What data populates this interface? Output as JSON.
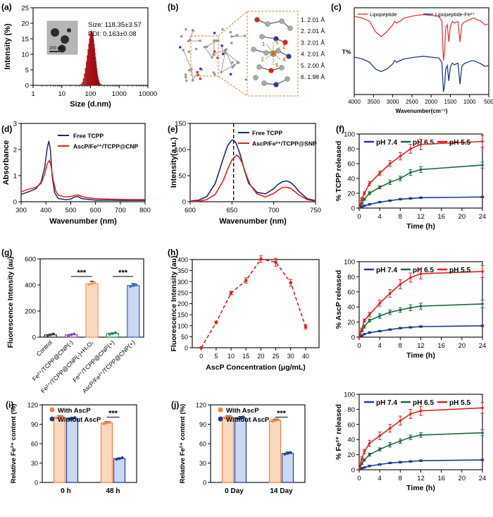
{
  "chart_data": [
    {
      "panel": "a",
      "type": "bar",
      "letter": "(a)",
      "xlabel": "Size (d.nm)",
      "ylabel": "Intensity (%)",
      "xscale": "log",
      "xlim": [
        1,
        10000
      ],
      "ylim": [
        0,
        25
      ],
      "xticks": [
        "1",
        "10",
        "100",
        "1000",
        "10000"
      ],
      "yticks": [
        "0",
        "5",
        "10",
        "15",
        "20",
        "25"
      ],
      "x": [
        45,
        50,
        55,
        60,
        65,
        70,
        75,
        80,
        85,
        90,
        95,
        100,
        105,
        110,
        115,
        120,
        125,
        130,
        135,
        140,
        145,
        150,
        155,
        160,
        165,
        170,
        175,
        180,
        185,
        190,
        195,
        200,
        210,
        220,
        230,
        240,
        250,
        260,
        270,
        280
      ],
      "values": [
        0.4,
        1.0,
        2.2,
        3.8,
        5.6,
        7.6,
        9.6,
        11.6,
        13.4,
        15.0,
        16.4,
        17.3,
        17.6,
        17.3,
        16.7,
        15.8,
        14.6,
        13.3,
        11.9,
        10.5,
        9.1,
        7.8,
        6.6,
        5.5,
        4.5,
        3.6,
        2.9,
        2.3,
        1.8,
        1.4,
        1.1,
        0.8,
        0.5,
        0.35,
        0.25,
        0.15,
        0.1,
        0.06,
        0.03,
        0.01
      ],
      "annotations": [
        "Size: 118.35±3.57",
        "PDI: 0.163±0.08"
      ],
      "inset_scale": "200 nm",
      "color": "#c0141c"
    },
    {
      "panel": "b",
      "type": "diagram",
      "letter": "(b)",
      "labels": [
        "1. 2.01 Å",
        "2. 2.01 Å",
        "3. 2.01 Å",
        "4. 2.01 Å",
        "5. 2.00 Å",
        "6. 1.98 Å"
      ],
      "markers": [
        "1",
        "2",
        "3",
        "4",
        "5",
        "6"
      ]
    },
    {
      "panel": "c",
      "type": "line",
      "letter": "(c)",
      "xlabel": "Wavenumber(cm⁻¹)",
      "ylabel": "T%",
      "xlim": [
        4000,
        500
      ],
      "xticks": [
        "4000",
        "3500",
        "3000",
        "2500",
        "2000",
        "1500",
        "1000",
        "500"
      ],
      "series": [
        {
          "name": "Lipopeptide",
          "color": "#e8383d",
          "x": [
            4000,
            3800,
            3600,
            3450,
            3300,
            3150,
            3000,
            2950,
            2900,
            2850,
            2700,
            2400,
            2200,
            2000,
            1800,
            1720,
            1680,
            1650,
            1620,
            1580,
            1540,
            1500,
            1450,
            1400,
            1300,
            1250,
            1200,
            1150,
            1100,
            1000,
            900,
            800,
            700,
            600,
            500
          ],
          "values": [
            0.92,
            0.9,
            0.86,
            0.74,
            0.68,
            0.74,
            0.82,
            0.86,
            0.84,
            0.85,
            0.9,
            0.93,
            0.94,
            0.93,
            0.92,
            0.86,
            0.4,
            0.5,
            0.78,
            0.82,
            0.62,
            0.8,
            0.86,
            0.84,
            0.86,
            0.62,
            0.82,
            0.85,
            0.86,
            0.88,
            0.9,
            0.88,
            0.86,
            0.82,
            0.83
          ]
        },
        {
          "name": "Lipopeptide-Fe³⁺",
          "color": "#1f3c88",
          "x": [
            4000,
            3800,
            3600,
            3450,
            3300,
            3150,
            3000,
            2950,
            2900,
            2850,
            2700,
            2400,
            2200,
            2000,
            1800,
            1720,
            1680,
            1650,
            1620,
            1580,
            1540,
            1500,
            1450,
            1400,
            1300,
            1250,
            1200,
            1150,
            1100,
            1000,
            900,
            800,
            700,
            600,
            500
          ],
          "values": [
            0.44,
            0.42,
            0.38,
            0.3,
            0.27,
            0.3,
            0.36,
            0.4,
            0.38,
            0.39,
            0.42,
            0.44,
            0.45,
            0.44,
            0.43,
            0.38,
            0.03,
            0.1,
            0.3,
            0.34,
            0.16,
            0.32,
            0.37,
            0.35,
            0.37,
            0.12,
            0.33,
            0.36,
            0.37,
            0.39,
            0.4,
            0.38,
            0.36,
            0.33,
            0.34
          ]
        }
      ]
    },
    {
      "panel": "d",
      "type": "line",
      "letter": "(d)",
      "xlabel": "Wavenumber (nm)",
      "ylabel": "Absorbance",
      "xlim": [
        300,
        800
      ],
      "ylim": [
        0,
        3
      ],
      "xticks": [
        "300",
        "400",
        "500",
        "600",
        "700",
        "800"
      ],
      "yticks": [
        "0",
        "1",
        "2",
        "3"
      ],
      "series": [
        {
          "name": "Free TCPP",
          "color": "#1a2a6c",
          "x": [
            300,
            330,
            360,
            380,
            395,
            405,
            412,
            418,
            425,
            435,
            450,
            480,
            500,
            515,
            530,
            545,
            560,
            580,
            600,
            650,
            700,
            750,
            800
          ],
          "values": [
            0.28,
            0.38,
            0.5,
            0.75,
            1.3,
            2.05,
            2.33,
            2.0,
            1.0,
            0.35,
            0.12,
            0.08,
            0.1,
            0.18,
            0.2,
            0.12,
            0.1,
            0.08,
            0.06,
            0.06,
            0.05,
            0.05,
            0.05
          ]
        },
        {
          "name": "AscP/Fe²⁺/TCPP@CNP",
          "color": "#e02020",
          "x": [
            300,
            330,
            360,
            380,
            395,
            405,
            414,
            420,
            430,
            440,
            450,
            480,
            500,
            515,
            530,
            545,
            560,
            580,
            600,
            650,
            700,
            750,
            800
          ],
          "values": [
            0.38,
            0.48,
            0.55,
            0.7,
            1.05,
            1.45,
            1.58,
            1.4,
            0.8,
            0.4,
            0.25,
            0.18,
            0.2,
            0.24,
            0.26,
            0.2,
            0.17,
            0.14,
            0.12,
            0.1,
            0.09,
            0.08,
            0.08
          ]
        }
      ]
    },
    {
      "panel": "e",
      "type": "line",
      "letter": "(e)",
      "xlabel": "Wavenumber (nm)",
      "ylabel": "Intensity(a.u.)",
      "xlim": [
        600,
        750
      ],
      "ylim": [
        0,
        150
      ],
      "xticks": [
        "600",
        "650",
        "700",
        "750"
      ],
      "yticks": [
        "0",
        "50",
        "100",
        "150"
      ],
      "vline": 652,
      "series": [
        {
          "name": "Free TCPP",
          "color": "#1a2a6c",
          "x": [
            600,
            610,
            620,
            630,
            640,
            645,
            650,
            652,
            655,
            660,
            665,
            670,
            680,
            690,
            700,
            705,
            710,
            715,
            720,
            725,
            730,
            740,
            750
          ],
          "values": [
            1,
            3,
            10,
            35,
            85,
            108,
            118,
            118,
            112,
            90,
            60,
            35,
            18,
            15,
            25,
            33,
            38,
            40,
            37,
            30,
            20,
            6,
            2
          ]
        },
        {
          "name": "AscP/Fe²⁺/TCPP@SNP",
          "color": "#e02020",
          "x": [
            600,
            610,
            620,
            630,
            640,
            645,
            650,
            655,
            658,
            662,
            667,
            672,
            680,
            690,
            700,
            705,
            710,
            715,
            720,
            725,
            730,
            740,
            750
          ],
          "values": [
            0,
            1,
            4,
            14,
            42,
            63,
            80,
            89,
            87,
            75,
            52,
            32,
            15,
            9,
            16,
            22,
            27,
            28,
            26,
            20,
            13,
            4,
            1
          ]
        }
      ]
    },
    {
      "panel": "f",
      "type": "line",
      "letter": "(f)",
      "xlabel": "Time (h)",
      "ylabel": "% TCPP released",
      "xlim": [
        0,
        24
      ],
      "ylim": [
        0,
        100
      ],
      "xticks": [
        "0",
        "4",
        "8",
        "12",
        "16",
        "20",
        "24"
      ],
      "yticks": [
        "0",
        "20",
        "40",
        "60",
        "80",
        "100"
      ],
      "x": [
        0,
        0.5,
        1,
        2,
        4,
        6,
        8,
        10,
        12,
        24
      ],
      "series": [
        {
          "name": "pH 7.4",
          "color": "#1f3c99",
          "values": [
            0,
            2,
            3,
            5,
            8,
            10,
            12,
            13,
            14,
            15
          ],
          "err": [
            0,
            0.5,
            0.5,
            1,
            1,
            1,
            1,
            1,
            1,
            1
          ]
        },
        {
          "name": "pH 6.5",
          "color": "#1e6b3a",
          "values": [
            0,
            6,
            12,
            20,
            28,
            35,
            40,
            48,
            52,
            58
          ],
          "err": [
            0,
            1,
            1.5,
            2,
            2,
            3,
            3,
            4,
            4,
            4
          ]
        },
        {
          "name": "pH 5.5",
          "color": "#e02020",
          "values": [
            0,
            12,
            20,
            33,
            47,
            60,
            70,
            80,
            86,
            90
          ],
          "err": [
            0,
            2,
            2,
            3,
            3,
            4,
            5,
            6,
            7,
            8
          ]
        }
      ]
    },
    {
      "panel": "g",
      "type": "bar",
      "letter": "(g)",
      "ylabel": "Fluorescence Intensity (au)",
      "ylim": [
        0,
        600
      ],
      "yticks": [
        "0",
        "200",
        "400",
        "600"
      ],
      "categories": [
        "Control",
        "Fe²⁺/TCPP@CNP(-)",
        "Fe²⁺/TCPP@CNP(-)+H₂O₂",
        "Fe²⁺/TCPP@CNP(+)",
        "AscP/Fe²⁺/TCPP@CNP(+)"
      ],
      "values": [
        18,
        18,
        410,
        28,
        395
      ],
      "err": [
        3,
        3,
        18,
        4,
        15
      ],
      "bar_colors": [
        "#3a3a3a",
        "#8e44ad",
        "#f5a060",
        "#2e8b57",
        "#3a6bc8"
      ],
      "bar_fills": [
        "none",
        "none",
        "#fbd9bf",
        "none",
        "#c9d9f2"
      ],
      "significance": [
        "***",
        "***"
      ]
    },
    {
      "panel": "h",
      "type": "line",
      "letter": "(h)",
      "xlabel": "AscP Concentration (μg/mL)",
      "ylabel": "Fluorescence Intensity (au)",
      "ylim": [
        0,
        400
      ],
      "yticks": [
        "0",
        "50",
        "100",
        "150",
        "200",
        "250",
        "300",
        "350",
        "400"
      ],
      "categories": [
        "0",
        "5",
        "10",
        "15",
        "20",
        "25",
        "30",
        "40"
      ],
      "values": [
        0,
        115,
        248,
        305,
        402,
        388,
        295,
        95
      ],
      "err": [
        0,
        6,
        8,
        12,
        15,
        18,
        15,
        10
      ],
      "color": "#e02020"
    },
    {
      "panel": "f2",
      "type": "line",
      "letter": "",
      "xlabel": "Time (h)",
      "ylabel": "% AscP released",
      "xlim": [
        0,
        24
      ],
      "ylim": [
        0,
        100
      ],
      "xticks": [
        "0",
        "4",
        "8",
        "12",
        "16",
        "20",
        "24"
      ],
      "yticks": [
        "0",
        "20",
        "40",
        "60",
        "80",
        "100"
      ],
      "x": [
        0,
        0.5,
        1,
        2,
        4,
        6,
        8,
        10,
        12,
        24
      ],
      "series": [
        {
          "name": "pH 7.4",
          "color": "#1f3c99",
          "values": [
            0,
            2,
            4,
            6,
            8,
            10,
            12,
            13,
            14,
            15
          ],
          "err": [
            0,
            0.5,
            0.5,
            1,
            1,
            1,
            1,
            1,
            1,
            1
          ]
        },
        {
          "name": "pH 6.5",
          "color": "#1e6b3a",
          "values": [
            0,
            8,
            14,
            22,
            28,
            33,
            36,
            39,
            41,
            44
          ],
          "err": [
            0,
            1,
            2,
            2,
            3,
            3,
            3,
            4,
            4,
            5
          ]
        },
        {
          "name": "pH 5.5",
          "color": "#e02020",
          "values": [
            0,
            10,
            22,
            30,
            45,
            58,
            70,
            79,
            84,
            87
          ],
          "err": [
            0,
            2,
            2,
            3,
            4,
            5,
            6,
            6,
            7,
            8
          ]
        }
      ]
    },
    {
      "panel": "i",
      "type": "bar",
      "letter": "(i)",
      "ylabel": "Relative Fe²⁺ content (%)",
      "ylim": [
        0,
        120
      ],
      "yticks": [
        "0",
        "30",
        "60",
        "90",
        "120"
      ],
      "categories": [
        "0 h",
        "48 h"
      ],
      "series": [
        {
          "name": "With AscP",
          "color": "#f08040",
          "fill": "#fbd9bf",
          "values": [
            101,
            92
          ],
          "err": [
            2,
            2
          ]
        },
        {
          "name": "Without AscP",
          "color": "#1f3c88",
          "fill": "#c9d9f2",
          "values": [
            99,
            37
          ],
          "err": [
            2,
            1
          ]
        }
      ],
      "significance": [
        "***"
      ]
    },
    {
      "panel": "j",
      "type": "bar",
      "letter": "(j)",
      "ylabel": "Relative Fe²⁺ content (%)",
      "ylim": [
        0,
        120
      ],
      "yticks": [
        "0",
        "30",
        "60",
        "90",
        "120"
      ],
      "categories": [
        "0 Day",
        "14 Day"
      ],
      "series": [
        {
          "name": "With AscP",
          "color": "#f08040",
          "fill": "#fbd9bf",
          "values": [
            101,
            96
          ],
          "err": [
            2,
            2
          ]
        },
        {
          "name": "Without AscP",
          "color": "#1f3c88",
          "fill": "#c9d9f2",
          "values": [
            100,
            45
          ],
          "err": [
            2,
            2
          ]
        }
      ],
      "significance": [
        "***"
      ]
    },
    {
      "panel": "f3",
      "type": "line",
      "letter": "",
      "xlabel": "Time (h)",
      "ylabel": "% Fe²⁺ released",
      "xlim": [
        0,
        24
      ],
      "ylim": [
        0,
        100
      ],
      "xticks": [
        "0",
        "4",
        "8",
        "12",
        "16",
        "20",
        "24"
      ],
      "yticks": [
        "0",
        "20",
        "40",
        "60",
        "80",
        "100"
      ],
      "x": [
        0,
        0.5,
        1,
        2,
        4,
        6,
        8,
        10,
        12,
        24
      ],
      "series": [
        {
          "name": "pH 7.4",
          "color": "#1f3c99",
          "values": [
            0,
            2,
            3,
            5,
            7,
            9,
            10,
            11,
            12,
            13
          ],
          "err": [
            0,
            0.5,
            0.5,
            1,
            1,
            1,
            1,
            1,
            1,
            1
          ]
        },
        {
          "name": "pH 6.5",
          "color": "#1e6b3a",
          "values": [
            0,
            8,
            13,
            20,
            27,
            33,
            38,
            43,
            46,
            49
          ],
          "err": [
            0,
            1,
            1.5,
            2,
            2,
            3,
            3,
            3,
            3,
            4
          ]
        },
        {
          "name": "pH 5.5",
          "color": "#e02020",
          "values": [
            0,
            14,
            24,
            35,
            45,
            55,
            65,
            74,
            78,
            82
          ],
          "err": [
            0,
            3,
            3,
            4,
            5,
            5,
            6,
            6,
            6,
            7
          ]
        }
      ]
    }
  ]
}
